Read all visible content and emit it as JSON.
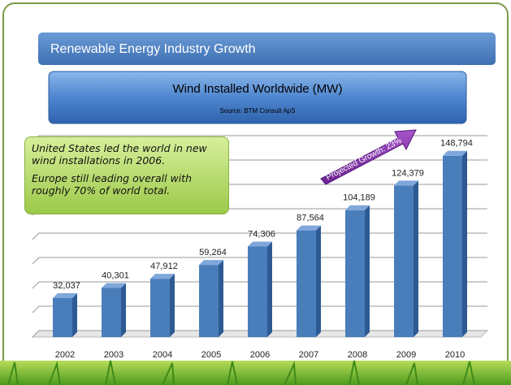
{
  "header": {
    "title": "Renewable Energy Industry Growth"
  },
  "chart_data": {
    "type": "bar",
    "title": "Wind Installed Worldwide (MW)",
    "subtitle": "Source: BTM Consult ApS",
    "annotations": [
      "United States led the world in new wind installations in 2006.",
      "Europe still leading overall with roughly 70% of world total.",
      "Projected Growth: 23%"
    ],
    "categories": [
      "2002",
      "2003",
      "2004",
      "2005",
      "2006",
      "2007",
      "2008",
      "2009",
      "2010"
    ],
    "values": [
      32037,
      40301,
      47912,
      59264,
      74306,
      87564,
      104189,
      124379,
      148794
    ],
    "value_labels": [
      "32,037",
      "40,301",
      "47,912",
      "59,264",
      "74,306",
      "87,564",
      "104,189",
      "124,379",
      "148,794"
    ],
    "color": "#4a7ebb",
    "ylim": [
      0,
      160000
    ],
    "yticks": [
      0,
      20000,
      40000,
      60000,
      80000,
      100000,
      120000,
      140000,
      160000
    ],
    "grid": true
  }
}
